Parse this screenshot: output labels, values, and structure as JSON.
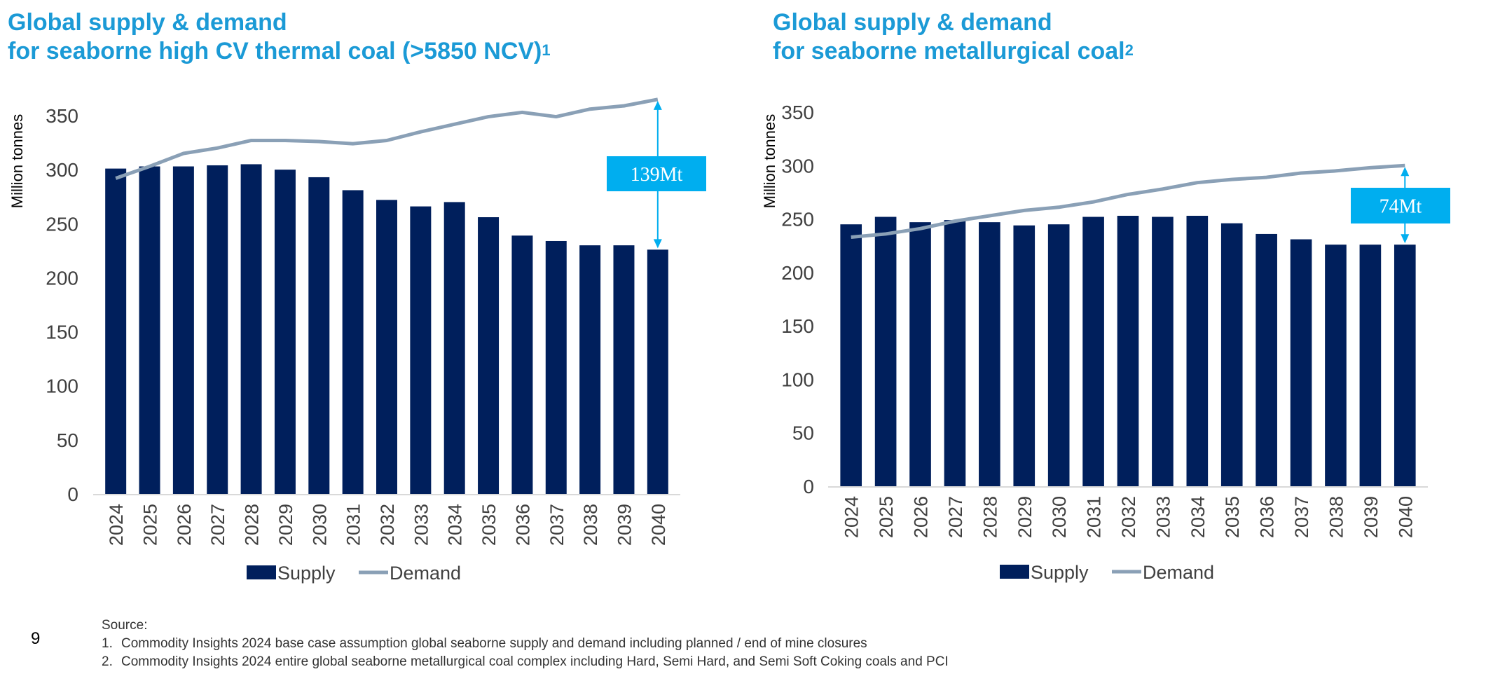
{
  "charts_titles": [
    {
      "line1": "Global supply & demand",
      "line2": "for seaborne high CV thermal coal (>5850 NCV)",
      "sup": "1"
    },
    {
      "line1": "Global supply & demand",
      "line2": "for seaborne metallurgical coal",
      "sup": "2"
    }
  ],
  "colors": {
    "supply": "#001f5c",
    "demand": "#8aa0b6",
    "accent": "#00aeef",
    "title": "#1b9ad6"
  },
  "chart_data": [
    {
      "type": "bar",
      "title": "Global supply & demand for seaborne high CV thermal coal (>5850 NCV)",
      "xlabel": "",
      "ylabel": "Million tonnes",
      "ylim": [
        0,
        350
      ],
      "yticks": [
        0,
        50,
        100,
        150,
        200,
        250,
        300,
        350
      ],
      "categories": [
        "2024",
        "2025",
        "2026",
        "2027",
        "2028",
        "2029",
        "2030",
        "2031",
        "2032",
        "2033",
        "2034",
        "2035",
        "2036",
        "2037",
        "2038",
        "2039",
        "2040"
      ],
      "series": [
        {
          "name": "Supply",
          "type": "bar",
          "values": [
            301,
            303,
            303,
            304,
            305,
            300,
            293,
            281,
            272,
            266,
            270,
            256,
            239,
            234,
            230,
            230,
            226
          ]
        },
        {
          "name": "Demand",
          "type": "line",
          "values": [
            292,
            303,
            315,
            320,
            327,
            327,
            326,
            324,
            327,
            335,
            342,
            349,
            353,
            349,
            356,
            359,
            365
          ]
        }
      ],
      "annotation": {
        "label": "139Mt",
        "category": "2040"
      },
      "legend": "bottom",
      "grid": false
    },
    {
      "type": "bar",
      "title": "Global supply & demand for seaborne metallurgical coal",
      "xlabel": "",
      "ylabel": "Million tonnes",
      "ylim": [
        0,
        350
      ],
      "yticks": [
        0,
        50,
        100,
        150,
        200,
        250,
        300,
        350
      ],
      "categories": [
        "2024",
        "2025",
        "2026",
        "2027",
        "2028",
        "2029",
        "2030",
        "2031",
        "2032",
        "2033",
        "2034",
        "2035",
        "2036",
        "2037",
        "2038",
        "2039",
        "2040"
      ],
      "series": [
        {
          "name": "Supply",
          "type": "bar",
          "values": [
            245,
            252,
            247,
            249,
            247,
            244,
            245,
            252,
            253,
            252,
            253,
            246,
            236,
            231,
            226,
            226,
            226
          ]
        },
        {
          "name": "Demand",
          "type": "line",
          "values": [
            233,
            236,
            241,
            248,
            253,
            258,
            261,
            266,
            273,
            278,
            284,
            287,
            289,
            293,
            295,
            298,
            300
          ]
        }
      ],
      "annotation": {
        "label": "74Mt",
        "category": "2040"
      },
      "legend": "bottom",
      "grid": false
    }
  ],
  "footer": {
    "page_number": "9",
    "source_label": "Source:",
    "notes": [
      {
        "n": "1.",
        "text": "Commodity Insights 2024 base case assumption global seaborne supply and demand including planned / end of mine closures"
      },
      {
        "n": "2.",
        "text": "Commodity Insights 2024 entire global seaborne metallurgical coal complex including Hard, Semi Hard, and Semi Soft Coking coals and PCI"
      }
    ]
  }
}
